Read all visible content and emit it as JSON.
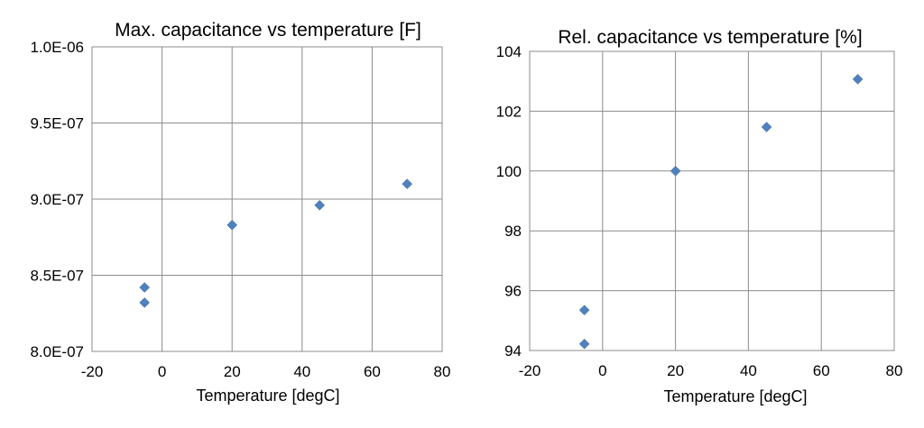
{
  "chart_data": [
    {
      "type": "scatter",
      "title": "Max. capacitance vs temperature [F]",
      "xlabel": "Temperature [degC]",
      "ylabel": "",
      "xlim": [
        -20,
        80
      ],
      "ylim": [
        8e-07,
        1e-06
      ],
      "xticks": [
        -20,
        0,
        20,
        40,
        60,
        80
      ],
      "yticks": [
        8e-07,
        8.5e-07,
        9e-07,
        9.5e-07,
        1e-06
      ],
      "xtick_labels": [
        "-20",
        "0",
        "20",
        "40",
        "60",
        "80"
      ],
      "ytick_labels": [
        "8.0E-07",
        "8.5E-07",
        "9.0E-07",
        "9.5E-07",
        "1.0E-06"
      ],
      "grid": true,
      "marker_color": "#4f81bd",
      "series": [
        {
          "name": "Max. capacitance",
          "x": [
            -5,
            -5,
            20,
            45,
            70
          ],
          "y": [
            8.42e-07,
            8.32e-07,
            8.83e-07,
            8.96e-07,
            9.1e-07
          ]
        }
      ]
    },
    {
      "type": "scatter",
      "title": "Rel. capacitance vs temperature [%]",
      "xlabel": "Temperature [degC]",
      "ylabel": "",
      "xlim": [
        -20,
        80
      ],
      "ylim": [
        94,
        104
      ],
      "xticks": [
        -20,
        0,
        20,
        40,
        60,
        80
      ],
      "yticks": [
        94,
        96,
        98,
        100,
        102,
        104
      ],
      "xtick_labels": [
        "-20",
        "0",
        "20",
        "40",
        "60",
        "80"
      ],
      "ytick_labels": [
        "94",
        "96",
        "98",
        "100",
        "102",
        "104"
      ],
      "grid": true,
      "marker_color": "#4f81bd",
      "series": [
        {
          "name": "Rel. capacitance",
          "x": [
            -5,
            -5,
            20,
            45,
            70
          ],
          "y": [
            95.35,
            94.22,
            100.0,
            101.47,
            103.07
          ]
        }
      ]
    }
  ]
}
